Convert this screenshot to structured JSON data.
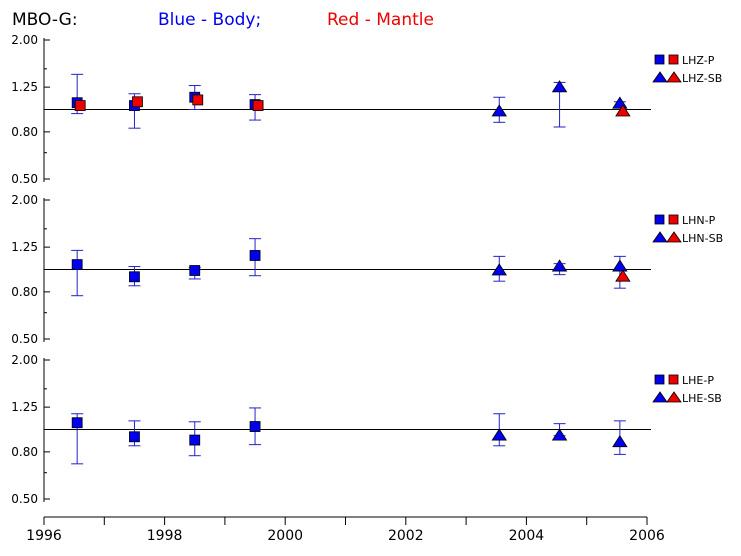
{
  "header": {
    "station": "MBO-G:",
    "blue_label": "Blue - Body;",
    "red_label": "Red - Mantle"
  },
  "colors": {
    "body": "#0000ee",
    "mantle": "#ee0000",
    "errorbar": "#2222cc",
    "axis": "#000000"
  },
  "chart_data": [
    {
      "type": "scatter",
      "channel": "LHZ",
      "legend": [
        "LHZ-P",
        "LHZ-SB"
      ],
      "ylim": [
        0.5,
        2.0
      ],
      "yticks": [
        "2.00",
        "1.25",
        "0.80",
        "0.50"
      ],
      "reference_line": 1.0,
      "series": [
        {
          "name": "LHZ-P",
          "marker": "square",
          "color": "body",
          "points": [
            {
              "x": 1996.55,
              "y": 1.07,
              "lo": 0.96,
              "hi": 1.42
            },
            {
              "x": 1997.5,
              "y": 1.04,
              "lo": 0.83,
              "hi": 1.17
            },
            {
              "x": 1998.5,
              "y": 1.13,
              "lo": 1.0,
              "hi": 1.27
            },
            {
              "x": 1999.5,
              "y": 1.05,
              "lo": 0.9,
              "hi": 1.16
            }
          ]
        },
        {
          "name": "LHZ-P",
          "marker": "square",
          "color": "mantle",
          "points": [
            {
              "x": 1996.6,
              "y": 1.04
            },
            {
              "x": 1997.55,
              "y": 1.08
            },
            {
              "x": 1998.55,
              "y": 1.1
            },
            {
              "x": 1999.55,
              "y": 1.04
            }
          ]
        },
        {
          "name": "LHZ-SB",
          "marker": "triangle",
          "color": "body",
          "points": [
            {
              "x": 2003.55,
              "y": 0.99,
              "lo": 0.88,
              "hi": 1.13
            },
            {
              "x": 2004.55,
              "y": 1.26,
              "lo": 0.84,
              "hi": 1.31
            },
            {
              "x": 2005.55,
              "y": 1.07,
              "lo": 1.03,
              "hi": 1.08
            }
          ]
        },
        {
          "name": "LHZ-SB",
          "marker": "triangle",
          "color": "mantle",
          "points": [
            {
              "x": 2005.6,
              "y": 0.99
            }
          ]
        }
      ]
    },
    {
      "type": "scatter",
      "channel": "LHN",
      "legend": [
        "LHN-P",
        "LHN-SB"
      ],
      "ylim": [
        0.5,
        2.0
      ],
      "yticks": [
        "2.00",
        "1.25",
        "0.80",
        "0.50"
      ],
      "reference_line": 1.0,
      "series": [
        {
          "name": "LHN-P",
          "marker": "square",
          "color": "body",
          "points": [
            {
              "x": 1996.55,
              "y": 1.05,
              "lo": 0.77,
              "hi": 1.21
            },
            {
              "x": 1997.5,
              "y": 0.93,
              "lo": 0.85,
              "hi": 1.03
            },
            {
              "x": 1998.5,
              "y": 0.99,
              "lo": 0.91,
              "hi": 1.02
            },
            {
              "x": 1999.5,
              "y": 1.15,
              "lo": 0.94,
              "hi": 1.36
            }
          ]
        },
        {
          "name": "LHN-SB",
          "marker": "triangle",
          "color": "body",
          "points": [
            {
              "x": 2003.55,
              "y": 1.0,
              "lo": 0.89,
              "hi": 1.14
            },
            {
              "x": 2004.55,
              "y": 1.04,
              "lo": 0.95,
              "hi": 1.06
            },
            {
              "x": 2005.55,
              "y": 1.04,
              "lo": 0.83,
              "hi": 1.14
            }
          ]
        },
        {
          "name": "LHN-SB",
          "marker": "triangle",
          "color": "mantle",
          "points": [
            {
              "x": 2005.6,
              "y": 0.94
            }
          ]
        }
      ]
    },
    {
      "type": "scatter",
      "channel": "LHE",
      "legend": [
        "LHE-P",
        "LHE-SB"
      ],
      "ylim": [
        0.5,
        2.0
      ],
      "yticks": [
        "2.00",
        "1.25",
        "0.80",
        "0.50"
      ],
      "reference_line": 1.0,
      "series": [
        {
          "name": "LHE-P",
          "marker": "square",
          "color": "body",
          "points": [
            {
              "x": 1996.55,
              "y": 1.07,
              "lo": 0.71,
              "hi": 1.17
            },
            {
              "x": 1997.5,
              "y": 0.93,
              "lo": 0.85,
              "hi": 1.09
            },
            {
              "x": 1998.5,
              "y": 0.9,
              "lo": 0.77,
              "hi": 1.08
            },
            {
              "x": 1999.5,
              "y": 1.03,
              "lo": 0.86,
              "hi": 1.24
            }
          ]
        },
        {
          "name": "LHE-SB",
          "marker": "triangle",
          "color": "body",
          "points": [
            {
              "x": 2003.55,
              "y": 0.95,
              "lo": 0.85,
              "hi": 1.17
            },
            {
              "x": 2004.55,
              "y": 0.95,
              "lo": 0.94,
              "hi": 1.06
            },
            {
              "x": 2005.55,
              "y": 0.89,
              "lo": 0.78,
              "hi": 1.09
            }
          ]
        }
      ]
    }
  ],
  "x_axis": {
    "xlim": [
      1996,
      2006
    ],
    "labels": [
      "1996",
      "1998",
      "2000",
      "2002",
      "2004",
      "2006"
    ],
    "minor_ticks": [
      1996,
      1997,
      1998,
      1999,
      2000,
      2001,
      2002,
      2003,
      2004,
      2005,
      2006
    ]
  }
}
